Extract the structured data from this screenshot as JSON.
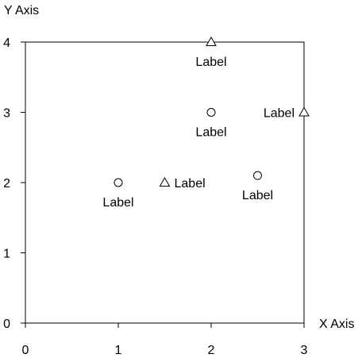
{
  "chart_data": {
    "type": "scatter",
    "title": "",
    "xlabel": "X Axis",
    "ylabel": "Y Axis",
    "xlim": [
      0,
      3
    ],
    "ylim": [
      0,
      4
    ],
    "xticks": [
      "0",
      "1",
      "2",
      "3"
    ],
    "yticks": [
      "0",
      "1",
      "2",
      "3",
      "4"
    ],
    "grid": false,
    "legend": "none",
    "series": [
      {
        "marker": "circle",
        "points": [
          {
            "x": 1,
            "y": 2,
            "label": "Label",
            "label_pos": "below"
          },
          {
            "x": 2,
            "y": 3,
            "label": "Label",
            "label_pos": "below"
          },
          {
            "x": 2.5,
            "y": 2.1,
            "label": "Label",
            "label_pos": "below"
          }
        ]
      },
      {
        "marker": "triangle",
        "points": [
          {
            "x": 1.5,
            "y": 2,
            "label": "Label",
            "label_pos": "right"
          },
          {
            "x": 2,
            "y": 4,
            "label": "Label",
            "label_pos": "below"
          },
          {
            "x": 3,
            "y": 3,
            "label": "Label",
            "label_pos": "left"
          }
        ]
      }
    ]
  }
}
